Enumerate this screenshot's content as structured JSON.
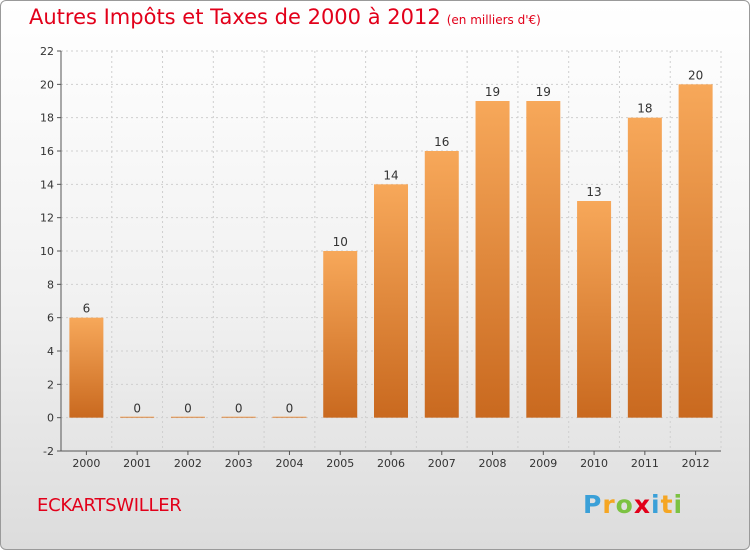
{
  "title": "Autres Impôts et Taxes de 2000 à 2012",
  "unit_note": "(en milliers d'€)",
  "commune": "ECKARTSWILLER",
  "logo": {
    "letters": [
      "P",
      "r",
      "o",
      "x",
      "i",
      "t",
      "i"
    ],
    "colors": [
      "#3aa0d8",
      "#f5a623",
      "#7cc242",
      "#e2001a",
      "#3aa0d8",
      "#f5a623",
      "#7cc242"
    ]
  },
  "colors": {
    "bar_top": "#f7a85a",
    "bar_bottom": "#c9691f",
    "title": "#e2001a",
    "axis": "#555555",
    "grid": "#cfcfcf"
  },
  "chart_data": {
    "type": "bar",
    "title": "Autres Impôts et Taxes de 2000 à 2012",
    "subtitle": "(en milliers d'€)",
    "categories": [
      "2000",
      "2001",
      "2002",
      "2003",
      "2004",
      "2005",
      "2006",
      "2007",
      "2008",
      "2009",
      "2010",
      "2011",
      "2012"
    ],
    "values": [
      6,
      0,
      0,
      0,
      0,
      10,
      14,
      16,
      19,
      19,
      13,
      18,
      20
    ],
    "xlabel": "",
    "ylabel": "",
    "ylim": [
      -2,
      22
    ],
    "yticks": [
      -2,
      0,
      2,
      4,
      6,
      8,
      10,
      12,
      14,
      16,
      18,
      20,
      22
    ],
    "grid": true,
    "legend": "none"
  }
}
